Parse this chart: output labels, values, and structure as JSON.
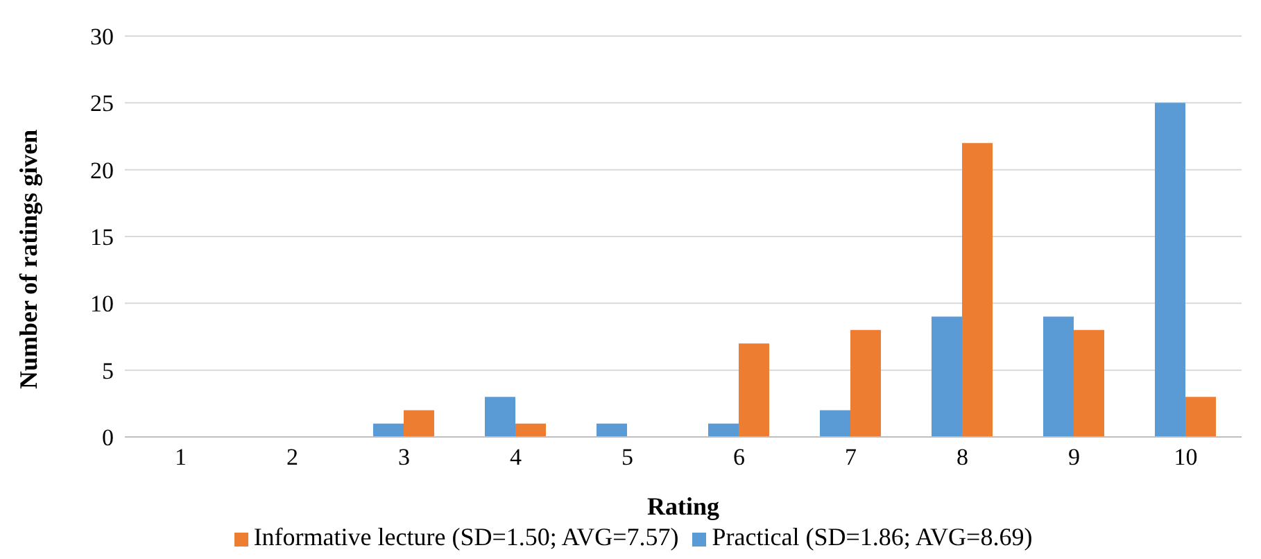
{
  "chart_data": {
    "type": "bar",
    "xlabel": "Rating",
    "ylabel": "Number of ratings given",
    "categories": [
      "1",
      "2",
      "3",
      "4",
      "5",
      "6",
      "7",
      "8",
      "9",
      "10"
    ],
    "series": [
      {
        "name": "Practical (SD=1.86; AVG=8.69)",
        "color": "#5b9bd5",
        "values": [
          0,
          0,
          1,
          3,
          1,
          1,
          2,
          9,
          9,
          25
        ]
      },
      {
        "name": "Informative lecture (SD=1.50; AVG=7.57)",
        "color": "#ed7d31",
        "values": [
          0,
          0,
          2,
          1,
          0,
          7,
          8,
          22,
          8,
          3
        ]
      }
    ],
    "ylim": [
      0,
      30
    ],
    "yticks": [
      0,
      5,
      10,
      15,
      20,
      25,
      30
    ],
    "grid": "y",
    "legend": "bottom"
  }
}
